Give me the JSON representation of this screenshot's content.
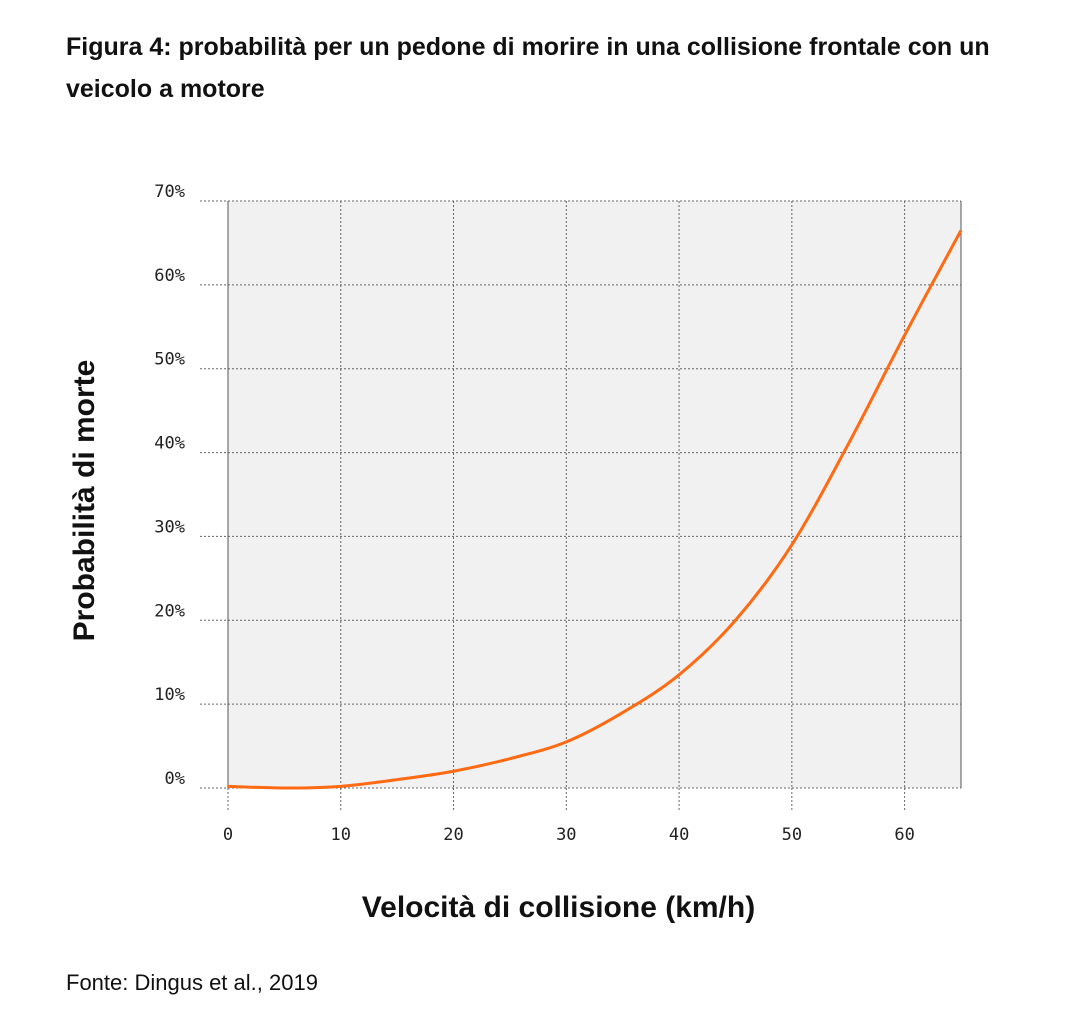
{
  "title": "Figura 4: probabilità per un pedone di morire in una collisione frontale con un veicolo a motore",
  "source": "Fonte: Dingus et al., 2019",
  "colors": {
    "line": "#ff6a13",
    "plot_bg": "#f1f1f1",
    "grid": "#666666"
  },
  "chart_data": {
    "type": "line",
    "xlabel": "Velocità di collisione (km/h)",
    "ylabel": "Probabilità di morte",
    "xlim": [
      0,
      65
    ],
    "ylim": [
      0,
      70
    ],
    "x_ticks": [
      0,
      10,
      20,
      30,
      40,
      50,
      60
    ],
    "y_ticks": [
      0,
      10,
      20,
      30,
      40,
      50,
      60,
      70
    ],
    "x_tick_labels": [
      "0",
      "10",
      "20",
      "30",
      "40",
      "50",
      "60"
    ],
    "y_tick_labels": [
      "0%",
      "10%",
      "20%",
      "30%",
      "40%",
      "50%",
      "60%",
      "70%"
    ],
    "grid": true,
    "series": [
      {
        "x": [
          0,
          5,
          10,
          15,
          20,
          25,
          30,
          35,
          40,
          45,
          50,
          55,
          60,
          65
        ],
        "y": [
          0.2,
          0,
          0.2,
          1,
          2,
          3.5,
          5.5,
          9,
          13.5,
          20,
          29,
          41,
          54,
          66.5
        ]
      }
    ]
  }
}
